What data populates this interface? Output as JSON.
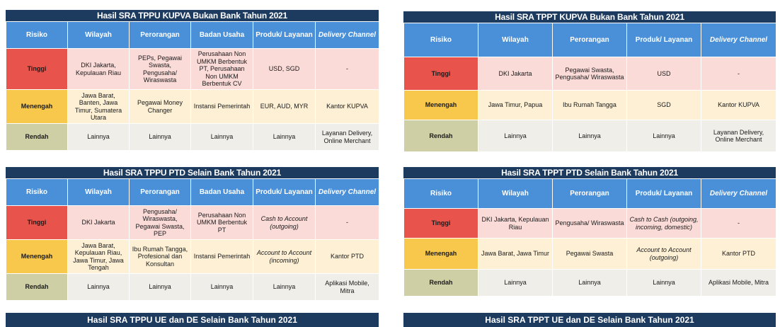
{
  "panels": [
    {
      "title": "Hasil SRA TPPU KUPVA Bukan Bank Tahun 2021",
      "headers": [
        "Risiko",
        "Wilayah",
        "Perorangan",
        "Badan Usaha",
        "Produk/ Layanan",
        "Delivery Channel"
      ],
      "rows": [
        {
          "level": "tinggi",
          "cells": [
            "Tinggi",
            "DKI Jakarta, Kepulauan Riau",
            "PEPs, Pegawai Swasta, Pengusaha/ Wiraswasta",
            "Perusahaan Non UMKM Berbentuk PT, Perusahaan Non UMKM Berbentuk CV",
            "USD, SGD",
            "-"
          ]
        },
        {
          "level": "menengah",
          "cells": [
            "Menengah",
            "Jawa Barat, Banten, Jawa Timur, Sumatera Utara",
            "Pegawai Money Changer",
            "Instansi Pemerintah",
            "EUR, AUD, MYR",
            "Kantor KUPVA"
          ]
        },
        {
          "level": "rendah",
          "cells": [
            "Rendah",
            "Lainnya",
            "Lainnya",
            "Lainnya",
            "Lainnya",
            "Layanan Delivery, Online Merchant"
          ]
        }
      ]
    },
    {
      "title": "Hasil SRA TPPT KUPVA Bukan Bank Tahun 2021",
      "headers": [
        "Risiko",
        "Wilayah",
        "Perorangan",
        "Produk/ Layanan",
        "Delivery Channel"
      ],
      "rows": [
        {
          "level": "tinggi",
          "cells": [
            "Tinggi",
            "DKI Jakarta",
            "Pegawai Swasta, Pengusaha/ Wiraswasta",
            "USD",
            "-"
          ]
        },
        {
          "level": "menengah",
          "cells": [
            "Menengah",
            "Jawa Timur, Papua",
            "Ibu Rumah Tangga",
            "SGD",
            "Kantor KUPVA"
          ]
        },
        {
          "level": "rendah",
          "cells": [
            "Rendah",
            "Lainnya",
            "Lainnya",
            "Lainnya",
            "Layanan Delivery, Online Merchant"
          ]
        }
      ]
    },
    {
      "title": "Hasil SRA TPPU PTD Selain Bank Tahun 2021",
      "headers": [
        "Risiko",
        "Wilayah",
        "Perorangan",
        "Badan Usaha",
        "Produk/ Layanan",
        "Delivery Channel"
      ],
      "rows": [
        {
          "level": "tinggi",
          "cells": [
            "Tinggi",
            "DKI Jakarta",
            "Pengusaha/ Wiraswasta, Pegawai Swasta, PEP",
            "Perusahaan Non UMKM Berbentuk PT",
            "Cash to Account (outgoing)",
            "-"
          ]
        },
        {
          "level": "menengah",
          "cells": [
            "Menengah",
            "Jawa Barat, Kepulauan Riau, Jawa Timur, Jawa Tengah",
            "Ibu Rumah Tangga, Profesional dan Konsultan",
            "Instansi Pemerintah",
            "Account to Account (incoming)",
            "Kantor PTD"
          ]
        },
        {
          "level": "rendah",
          "cells": [
            "Rendah",
            "Lainnya",
            "Lainnya",
            "Lainnya",
            "Lainnya",
            "Aplikasi Mobile, Mitra"
          ]
        }
      ]
    },
    {
      "title": "Hasil SRA TPPT PTD Selain Bank Tahun 2021",
      "headers": [
        "Risiko",
        "Wilayah",
        "Perorangan",
        "Produk/ Layanan",
        "Delivery Channel"
      ],
      "rows": [
        {
          "level": "tinggi",
          "cells": [
            "Tinggi",
            "DKI Jakarta, Kepulauan Riau",
            "Pengusaha/ Wiraswasta",
            "Cash to Cash (outgoing, incoming, domestic)",
            "-"
          ]
        },
        {
          "level": "menengah",
          "cells": [
            "Menengah",
            "Jawa Barat, Jawa Timur",
            "Pegawai Swasta",
            "Account to Account (outgoing)",
            "Kantor PTD"
          ]
        },
        {
          "level": "rendah",
          "cells": [
            "Rendah",
            "Lainnya",
            "Lainnya",
            "Lainnya",
            "Aplikasi Mobile, Mitra"
          ]
        }
      ]
    }
  ],
  "footer_titles": [
    "Hasil SRA TPPU UE dan DE Selain Bank Tahun 2021",
    "Hasil SRA TPPT UE dan DE Selain Bank Tahun 2021"
  ]
}
